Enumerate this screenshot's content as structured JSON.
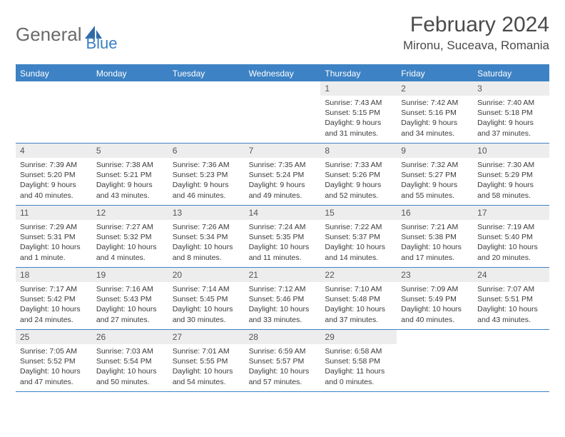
{
  "logo": {
    "text1": "General",
    "text2": "Blue"
  },
  "title": "February 2024",
  "location": "Mironu, Suceava, Romania",
  "colors": {
    "accent": "#3d82c4",
    "daynum_bg": "#ededed",
    "text": "#3a3a3a",
    "header_text": "#4a4a4a"
  },
  "dow": [
    "Sunday",
    "Monday",
    "Tuesday",
    "Wednesday",
    "Thursday",
    "Friday",
    "Saturday"
  ],
  "weeks": [
    [
      {
        "n": "",
        "sunrise": "",
        "sunset": "",
        "daylight": ""
      },
      {
        "n": "",
        "sunrise": "",
        "sunset": "",
        "daylight": ""
      },
      {
        "n": "",
        "sunrise": "",
        "sunset": "",
        "daylight": ""
      },
      {
        "n": "",
        "sunrise": "",
        "sunset": "",
        "daylight": ""
      },
      {
        "n": "1",
        "sunrise": "Sunrise: 7:43 AM",
        "sunset": "Sunset: 5:15 PM",
        "daylight": "Daylight: 9 hours and 31 minutes."
      },
      {
        "n": "2",
        "sunrise": "Sunrise: 7:42 AM",
        "sunset": "Sunset: 5:16 PM",
        "daylight": "Daylight: 9 hours and 34 minutes."
      },
      {
        "n": "3",
        "sunrise": "Sunrise: 7:40 AM",
        "sunset": "Sunset: 5:18 PM",
        "daylight": "Daylight: 9 hours and 37 minutes."
      }
    ],
    [
      {
        "n": "4",
        "sunrise": "Sunrise: 7:39 AM",
        "sunset": "Sunset: 5:20 PM",
        "daylight": "Daylight: 9 hours and 40 minutes."
      },
      {
        "n": "5",
        "sunrise": "Sunrise: 7:38 AM",
        "sunset": "Sunset: 5:21 PM",
        "daylight": "Daylight: 9 hours and 43 minutes."
      },
      {
        "n": "6",
        "sunrise": "Sunrise: 7:36 AM",
        "sunset": "Sunset: 5:23 PM",
        "daylight": "Daylight: 9 hours and 46 minutes."
      },
      {
        "n": "7",
        "sunrise": "Sunrise: 7:35 AM",
        "sunset": "Sunset: 5:24 PM",
        "daylight": "Daylight: 9 hours and 49 minutes."
      },
      {
        "n": "8",
        "sunrise": "Sunrise: 7:33 AM",
        "sunset": "Sunset: 5:26 PM",
        "daylight": "Daylight: 9 hours and 52 minutes."
      },
      {
        "n": "9",
        "sunrise": "Sunrise: 7:32 AM",
        "sunset": "Sunset: 5:27 PM",
        "daylight": "Daylight: 9 hours and 55 minutes."
      },
      {
        "n": "10",
        "sunrise": "Sunrise: 7:30 AM",
        "sunset": "Sunset: 5:29 PM",
        "daylight": "Daylight: 9 hours and 58 minutes."
      }
    ],
    [
      {
        "n": "11",
        "sunrise": "Sunrise: 7:29 AM",
        "sunset": "Sunset: 5:31 PM",
        "daylight": "Daylight: 10 hours and 1 minute."
      },
      {
        "n": "12",
        "sunrise": "Sunrise: 7:27 AM",
        "sunset": "Sunset: 5:32 PM",
        "daylight": "Daylight: 10 hours and 4 minutes."
      },
      {
        "n": "13",
        "sunrise": "Sunrise: 7:26 AM",
        "sunset": "Sunset: 5:34 PM",
        "daylight": "Daylight: 10 hours and 8 minutes."
      },
      {
        "n": "14",
        "sunrise": "Sunrise: 7:24 AM",
        "sunset": "Sunset: 5:35 PM",
        "daylight": "Daylight: 10 hours and 11 minutes."
      },
      {
        "n": "15",
        "sunrise": "Sunrise: 7:22 AM",
        "sunset": "Sunset: 5:37 PM",
        "daylight": "Daylight: 10 hours and 14 minutes."
      },
      {
        "n": "16",
        "sunrise": "Sunrise: 7:21 AM",
        "sunset": "Sunset: 5:38 PM",
        "daylight": "Daylight: 10 hours and 17 minutes."
      },
      {
        "n": "17",
        "sunrise": "Sunrise: 7:19 AM",
        "sunset": "Sunset: 5:40 PM",
        "daylight": "Daylight: 10 hours and 20 minutes."
      }
    ],
    [
      {
        "n": "18",
        "sunrise": "Sunrise: 7:17 AM",
        "sunset": "Sunset: 5:42 PM",
        "daylight": "Daylight: 10 hours and 24 minutes."
      },
      {
        "n": "19",
        "sunrise": "Sunrise: 7:16 AM",
        "sunset": "Sunset: 5:43 PM",
        "daylight": "Daylight: 10 hours and 27 minutes."
      },
      {
        "n": "20",
        "sunrise": "Sunrise: 7:14 AM",
        "sunset": "Sunset: 5:45 PM",
        "daylight": "Daylight: 10 hours and 30 minutes."
      },
      {
        "n": "21",
        "sunrise": "Sunrise: 7:12 AM",
        "sunset": "Sunset: 5:46 PM",
        "daylight": "Daylight: 10 hours and 33 minutes."
      },
      {
        "n": "22",
        "sunrise": "Sunrise: 7:10 AM",
        "sunset": "Sunset: 5:48 PM",
        "daylight": "Daylight: 10 hours and 37 minutes."
      },
      {
        "n": "23",
        "sunrise": "Sunrise: 7:09 AM",
        "sunset": "Sunset: 5:49 PM",
        "daylight": "Daylight: 10 hours and 40 minutes."
      },
      {
        "n": "24",
        "sunrise": "Sunrise: 7:07 AM",
        "sunset": "Sunset: 5:51 PM",
        "daylight": "Daylight: 10 hours and 43 minutes."
      }
    ],
    [
      {
        "n": "25",
        "sunrise": "Sunrise: 7:05 AM",
        "sunset": "Sunset: 5:52 PM",
        "daylight": "Daylight: 10 hours and 47 minutes."
      },
      {
        "n": "26",
        "sunrise": "Sunrise: 7:03 AM",
        "sunset": "Sunset: 5:54 PM",
        "daylight": "Daylight: 10 hours and 50 minutes."
      },
      {
        "n": "27",
        "sunrise": "Sunrise: 7:01 AM",
        "sunset": "Sunset: 5:55 PM",
        "daylight": "Daylight: 10 hours and 54 minutes."
      },
      {
        "n": "28",
        "sunrise": "Sunrise: 6:59 AM",
        "sunset": "Sunset: 5:57 PM",
        "daylight": "Daylight: 10 hours and 57 minutes."
      },
      {
        "n": "29",
        "sunrise": "Sunrise: 6:58 AM",
        "sunset": "Sunset: 5:58 PM",
        "daylight": "Daylight: 11 hours and 0 minutes."
      },
      {
        "n": "",
        "sunrise": "",
        "sunset": "",
        "daylight": ""
      },
      {
        "n": "",
        "sunrise": "",
        "sunset": "",
        "daylight": ""
      }
    ]
  ]
}
